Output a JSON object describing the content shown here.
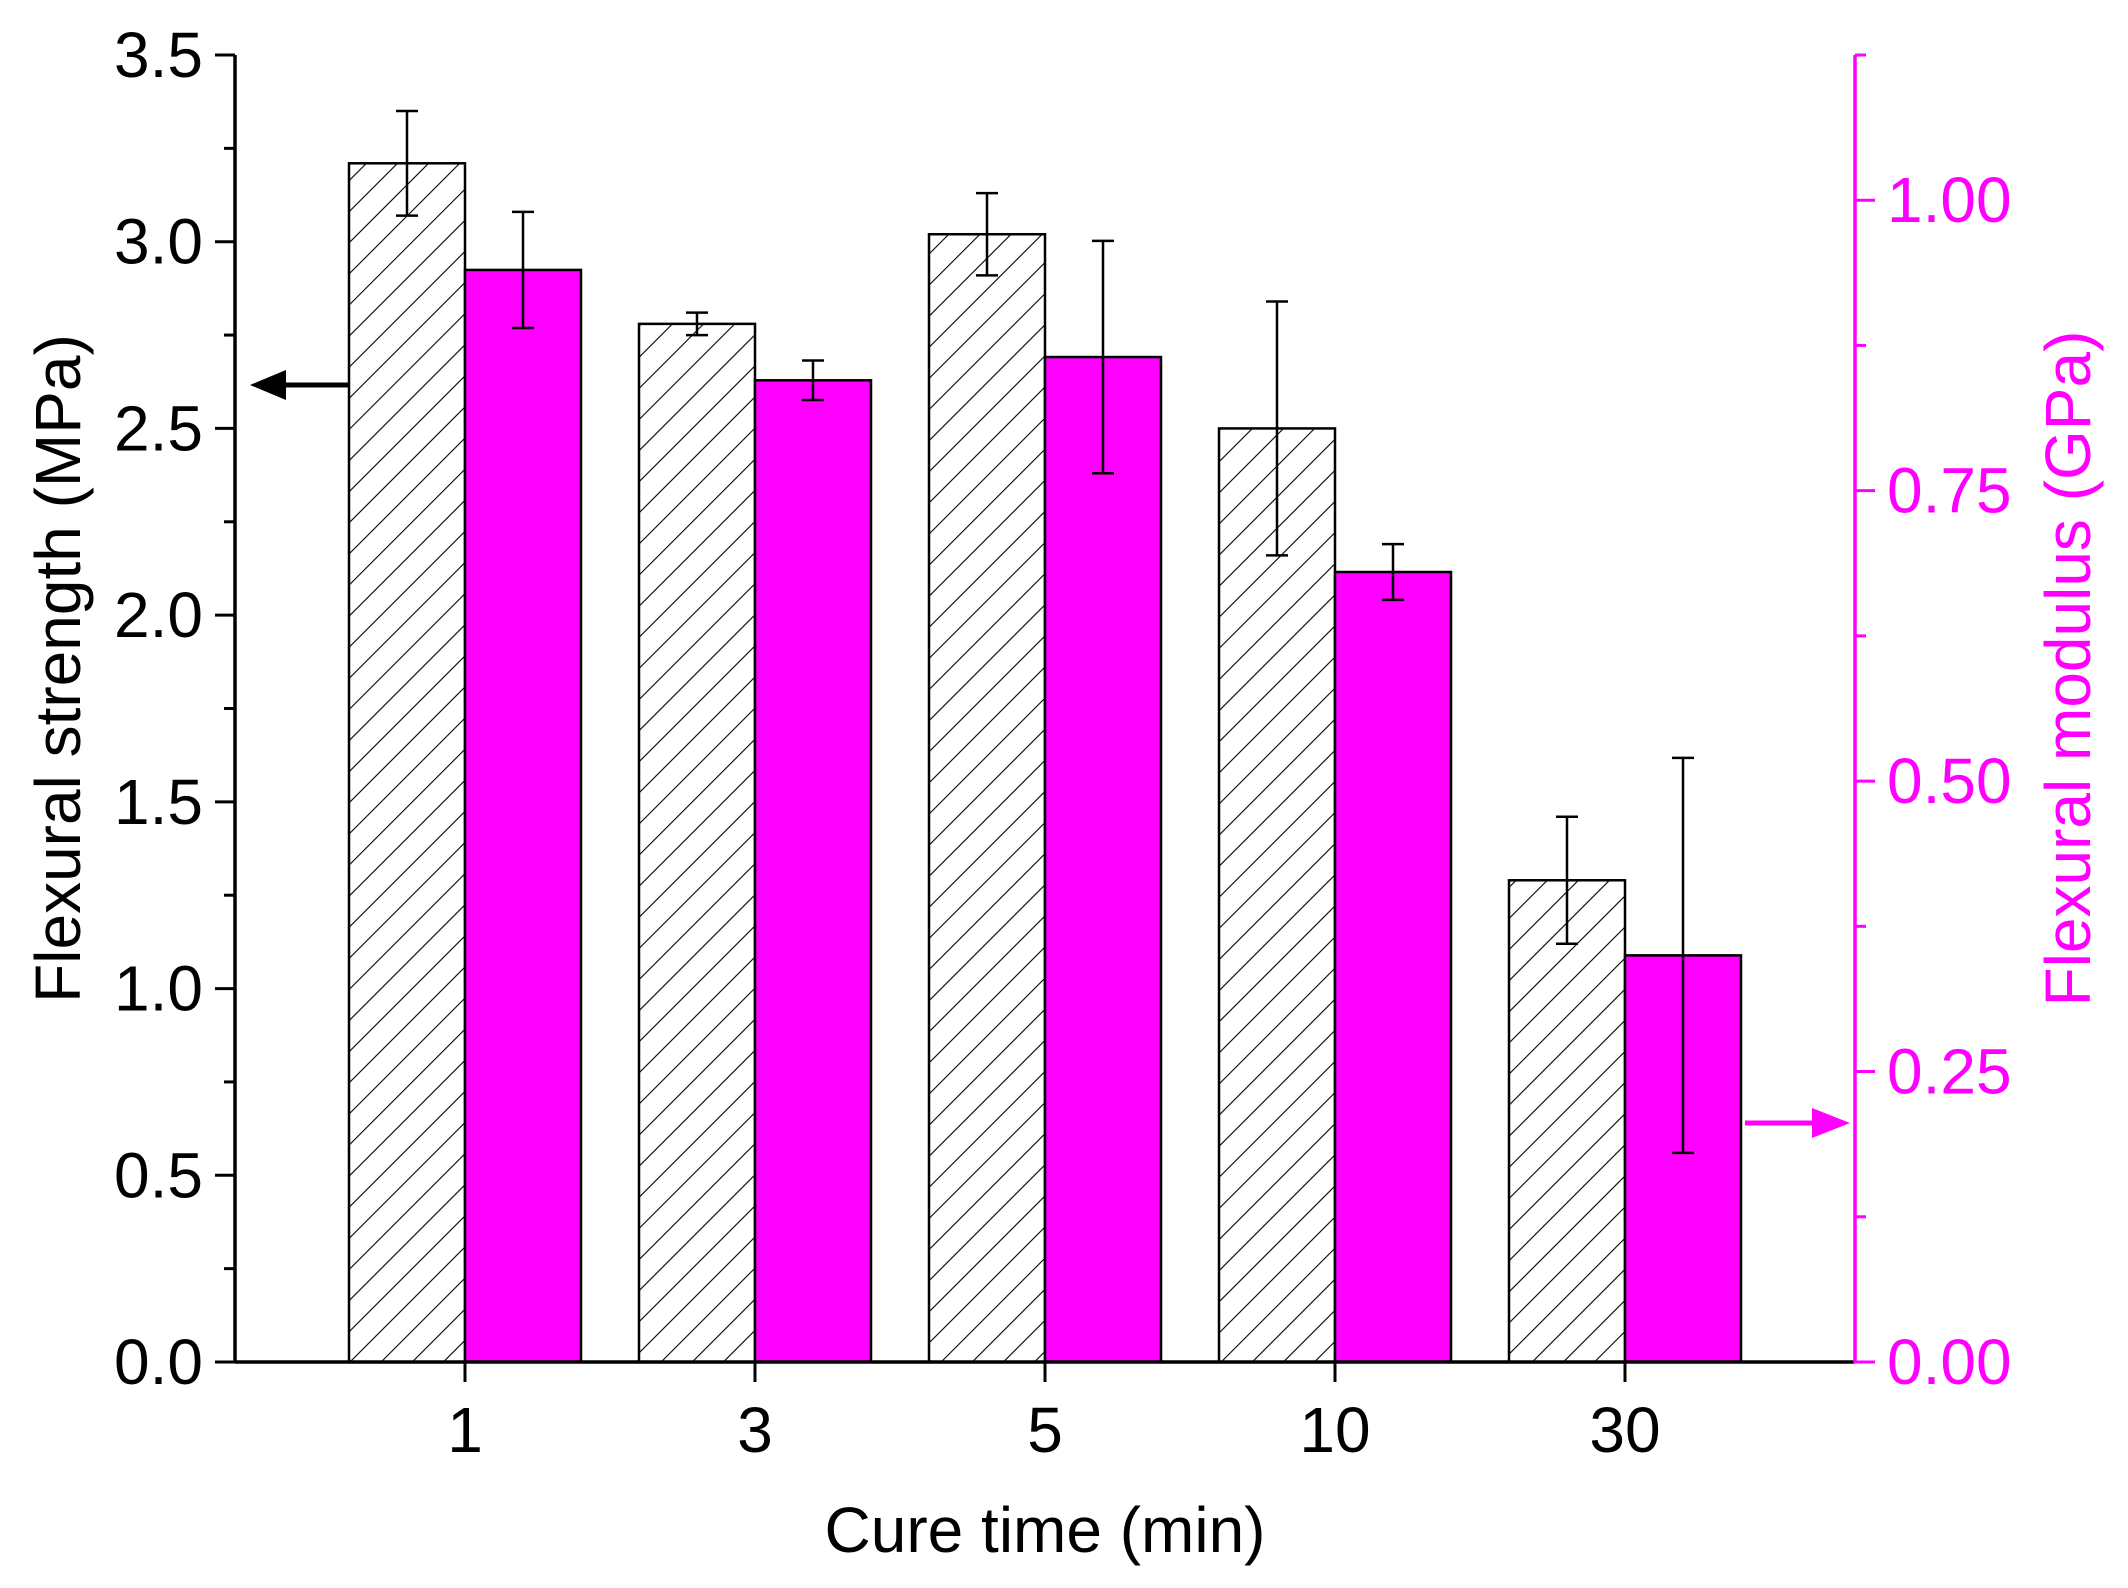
{
  "chart_data": {
    "type": "bar",
    "xlabel": "Cure time (min)",
    "ylabel": "Flexural strength (MPa)",
    "y2label": "Flexural modulus (GPa)",
    "categories": [
      "1",
      "3",
      "5",
      "10",
      "30"
    ],
    "ylim": [
      0,
      3.5
    ],
    "y2lim": [
      0,
      1.125
    ],
    "yticks": [
      "0.0",
      "0.5",
      "1.0",
      "1.5",
      "2.0",
      "2.5",
      "3.0",
      "3.5"
    ],
    "y2ticks": [
      "0.00",
      "0.25",
      "0.50",
      "0.75",
      "1.00"
    ],
    "series": [
      {
        "name": "Flexural strength",
        "axis": "left",
        "fill": "hatched",
        "values": [
          3.21,
          2.78,
          3.02,
          2.5,
          1.29
        ],
        "errors": [
          0.14,
          0.03,
          0.11,
          0.34,
          0.17
        ]
      },
      {
        "name": "Flexural modulus",
        "axis": "right",
        "fill": "solid",
        "values": [
          0.94,
          0.845,
          0.865,
          0.68,
          0.35
        ],
        "errors": [
          0.05,
          0.017,
          0.1,
          0.024,
          0.17
        ]
      }
    ],
    "annotations": [
      {
        "type": "arrow",
        "direction": "left",
        "series": "Flexural strength",
        "axis": "left"
      },
      {
        "type": "arrow",
        "direction": "right",
        "series": "Flexural modulus",
        "axis": "right"
      }
    ]
  },
  "colors": {
    "magenta": "#ff00ff",
    "black": "#000000"
  }
}
